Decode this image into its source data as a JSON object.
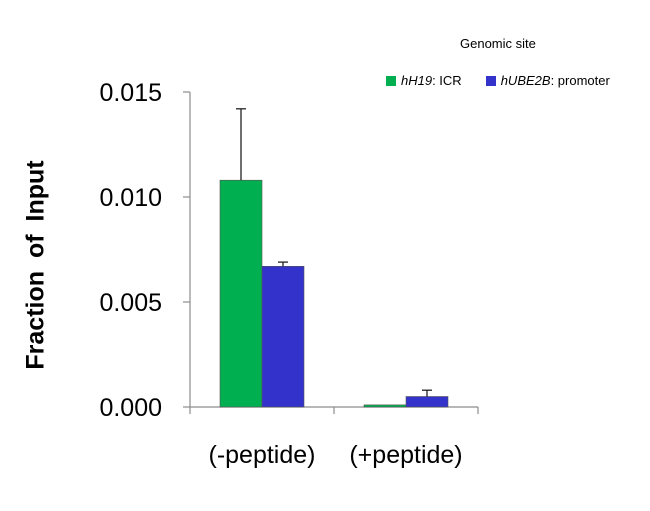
{
  "chart_data": {
    "type": "bar",
    "categories": [
      "(-peptide)",
      "(+peptide)"
    ],
    "series": [
      {
        "name": "hH19: ICR",
        "italic_part": "hH19",
        "rest": ": ICR",
        "color": "#00b050",
        "values": [
          0.0108,
          0.0001
        ],
        "errors": [
          0.0034,
          0.0
        ]
      },
      {
        "name": "hUBE2B: promoter",
        "italic_part": "hUBE2B",
        "rest": ": promoter",
        "color": "#3333cc",
        "values": [
          0.0067,
          0.0005
        ],
        "errors": [
          0.0002,
          0.0003
        ]
      }
    ],
    "legend_title": "Genomic site",
    "ylabel": "Fraction of  Input",
    "ylim": [
      0,
      0.015
    ],
    "yticks": [
      "0.000",
      "0.005",
      "0.010",
      "0.015"
    ],
    "legend_position": "top-right"
  }
}
